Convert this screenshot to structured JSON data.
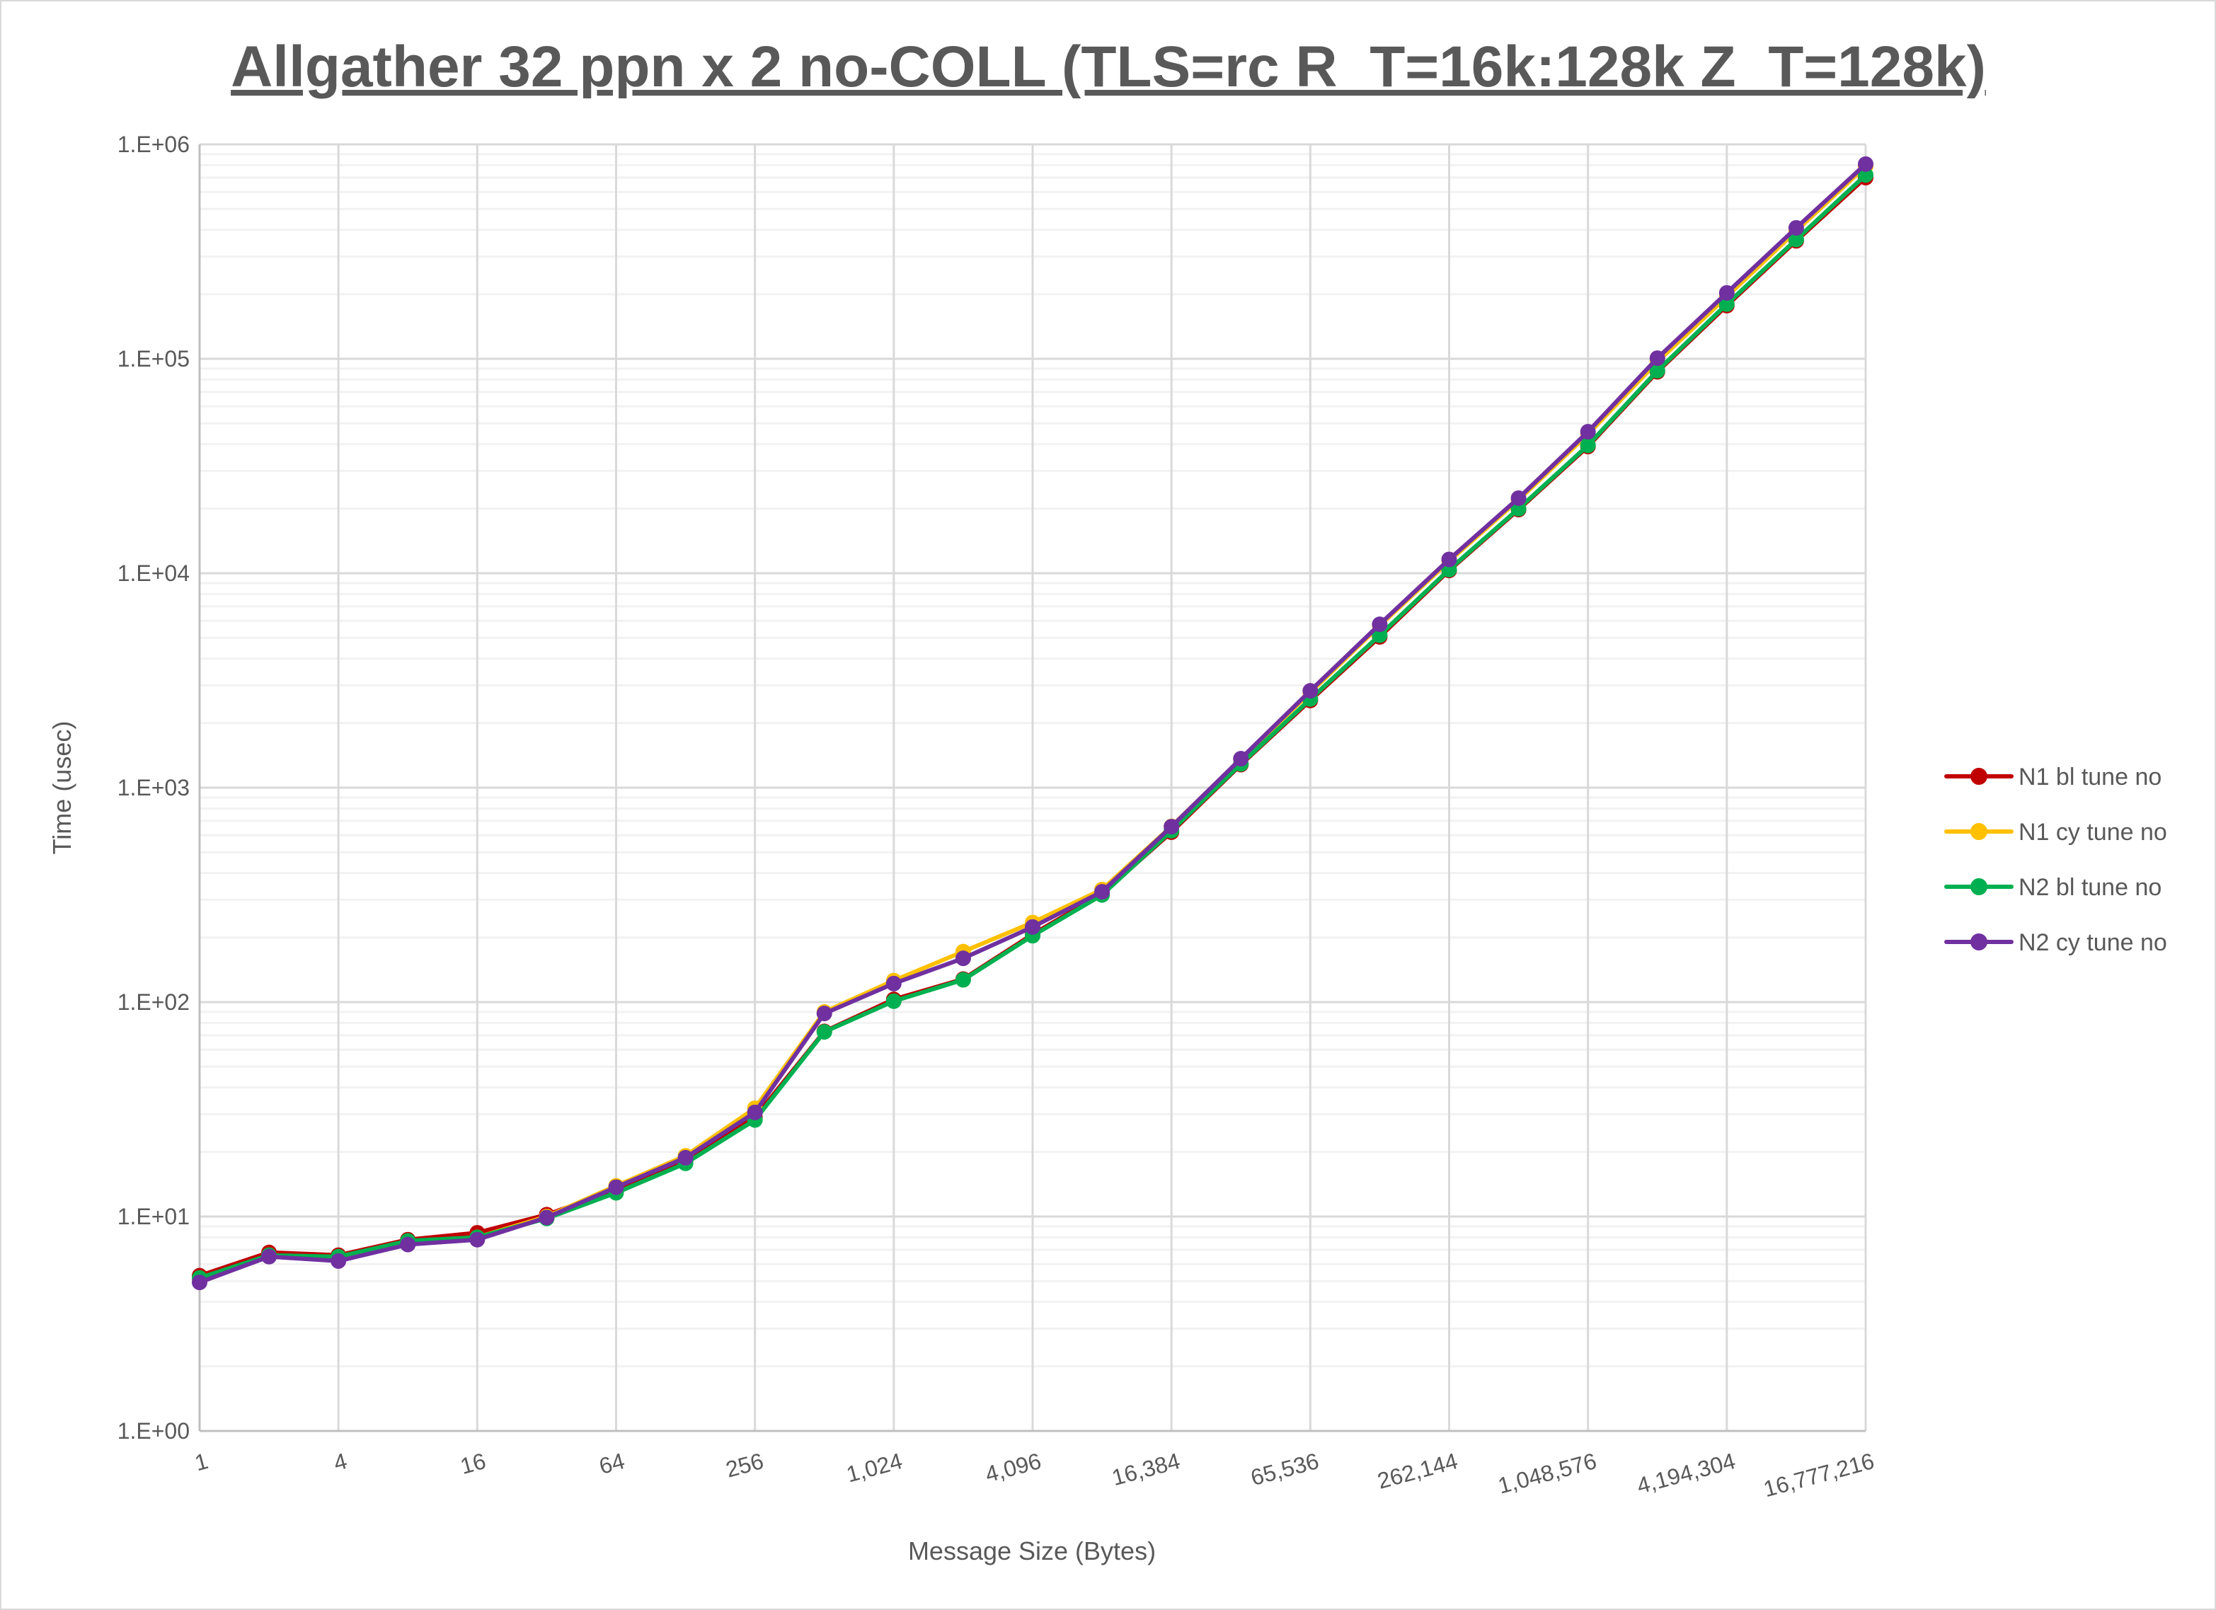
{
  "chart_data": {
    "type": "line",
    "title": "Allgather 32 ppn x 2 no-COLL (TLS=rc R_T=16k:128k Z_T=128k)",
    "xlabel": "Message Size (Bytes)",
    "ylabel": "Time (usec)",
    "x_scale": "log2",
    "y_scale": "log10",
    "xlim": [
      1,
      16777216
    ],
    "ylim": [
      1,
      1000000
    ],
    "grid": true,
    "legend_position": "right",
    "x": [
      1,
      2,
      4,
      8,
      16,
      32,
      64,
      128,
      256,
      512,
      1024,
      2048,
      4096,
      8192,
      16384,
      32768,
      65536,
      131072,
      262144,
      524288,
      1048576,
      2097152,
      4194304,
      8388608,
      16777216
    ],
    "x_tick_labels": [
      "1",
      "4",
      "16",
      "64",
      "256",
      "1,024",
      "4,096",
      "16,384",
      "65,536",
      "262,144",
      "1,048,576",
      "4,194,304",
      "16,777,216"
    ],
    "y_tick_labels": [
      "1.E+00",
      "1.E+01",
      "1.E+02",
      "1.E+03",
      "1.E+04",
      "1.E+05",
      "1.E+06"
    ],
    "series": [
      {
        "name": "N1 bl tune no",
        "color": "#c00000",
        "values": [
          5.3,
          6.8,
          6.6,
          7.8,
          8.4,
          10.2,
          13.3,
          18.2,
          29,
          73,
          103,
          128,
          207,
          320,
          620,
          1280,
          2550,
          5050,
          10300,
          19800,
          39000,
          87000,
          177000,
          355000,
          700000
        ]
      },
      {
        "name": "N1 cy tune no",
        "color": "#ffc000",
        "values": [
          5.1,
          6.6,
          6.3,
          7.6,
          8.0,
          10.0,
          13.9,
          19.2,
          32,
          90,
          126,
          172,
          235,
          335,
          660,
          1360,
          2780,
          5700,
          11400,
          22000,
          44500,
          97000,
          195000,
          395000,
          790000
        ]
      },
      {
        "name": "N2 bl tune no",
        "color": "#00b050",
        "values": [
          5.17,
          6.6,
          6.5,
          7.7,
          8.0,
          9.8,
          12.9,
          17.7,
          28.2,
          72.6,
          101,
          127,
          204,
          316,
          630,
          1290,
          2590,
          5140,
          10400,
          20000,
          39500,
          88000,
          180000,
          360000,
          720000
        ]
      },
      {
        "name": "N2 cy tune no",
        "color": "#7030a0",
        "values": [
          4.93,
          6.5,
          6.2,
          7.4,
          7.8,
          9.9,
          13.7,
          18.8,
          30.6,
          88.5,
          122,
          160,
          224,
          327,
          658,
          1365,
          2830,
          5780,
          11600,
          22400,
          45700,
          100700,
          203000,
          408000,
          809000
        ]
      }
    ]
  }
}
